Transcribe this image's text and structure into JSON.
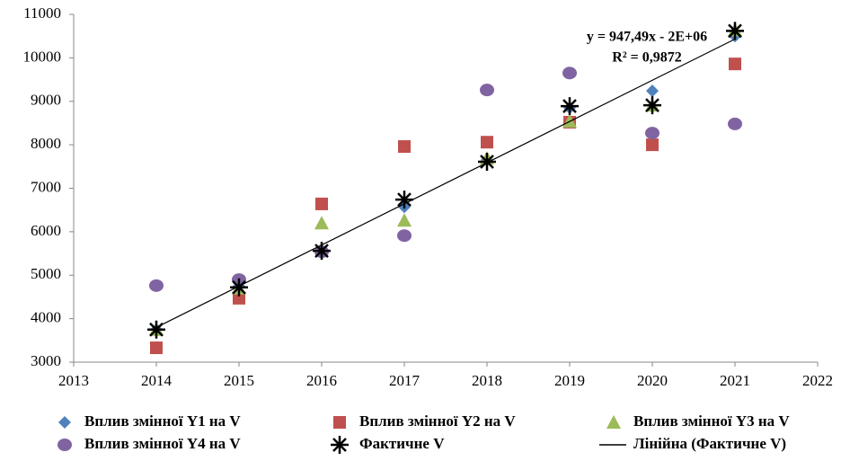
{
  "chart_data": {
    "type": "scatter",
    "x": [
      2014,
      2015,
      2016,
      2017,
      2018,
      2019,
      2020,
      2021
    ],
    "series": [
      {
        "name": "Вплив змінної Y1 на V",
        "color": "#4f81bd",
        "marker": "diamond",
        "values": [
          3750,
          4750,
          5550,
          6570,
          7650,
          8850,
          9240,
          10500
        ]
      },
      {
        "name": "Вплив змінної Y2 на V",
        "color": "#c0504d",
        "marker": "square",
        "values": [
          3330,
          4470,
          6640,
          7960,
          8060,
          8520,
          8000,
          9860
        ]
      },
      {
        "name": "Вплив змінної Y3 на V",
        "color": "#9bbb59",
        "marker": "triangle",
        "values": [
          3750,
          4700,
          6200,
          6260,
          7690,
          8540,
          8910,
          10640
        ]
      },
      {
        "name": "Вплив змінної Y4 на V",
        "color": "#8064a2",
        "marker": "circle",
        "values": [
          4760,
          4900,
          5540,
          5910,
          9260,
          9650,
          8270,
          8480
        ]
      },
      {
        "name": "Фактичне V",
        "color": "#000000",
        "marker": "star",
        "values": [
          3750,
          4720,
          5560,
          6740,
          7610,
          8890,
          8910,
          10620
        ]
      },
      {
        "name": "Лінійна (Фактичне V)",
        "color": "#000000",
        "marker": "line",
        "x": [
          2014,
          2021
        ],
        "values": [
          3800,
          10432
        ]
      }
    ],
    "annotations": [
      "y = 947,49x - 2E+06",
      "R² = 0,9872"
    ],
    "xlim": [
      2013,
      2022
    ],
    "xticks": [
      2013,
      2014,
      2015,
      2016,
      2017,
      2018,
      2019,
      2020,
      2021,
      2022
    ],
    "ylim": [
      3000,
      11000
    ],
    "yticks": [
      3000,
      4000,
      5000,
      6000,
      7000,
      8000,
      9000,
      10000,
      11000
    ],
    "grid": false
  }
}
